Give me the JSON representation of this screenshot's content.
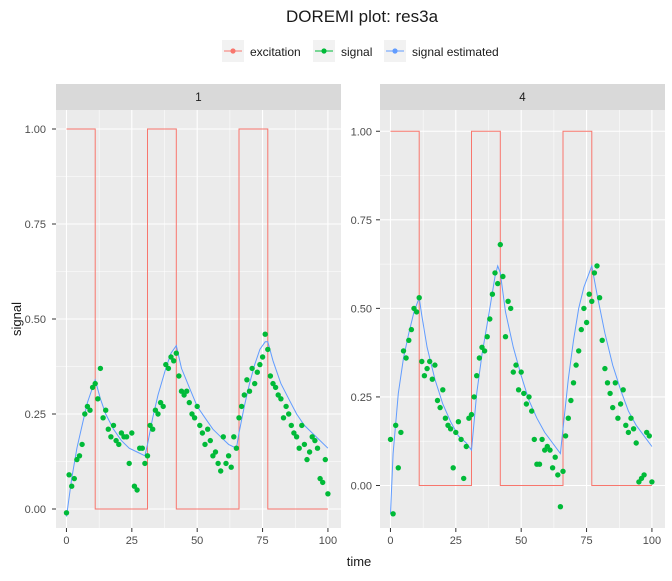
{
  "chart_data": {
    "type": "line",
    "title": "DOREMI plot: res3a",
    "xlabel": "time",
    "ylabel": "signal",
    "legend": {
      "placement": "top",
      "entries": [
        {
          "name": "excitation",
          "color": "#F8766D"
        },
        {
          "name": "signal",
          "color": "#00BA38"
        },
        {
          "name": "signal estimated",
          "color": "#619CFF"
        }
      ]
    },
    "x_ticks": [
      0,
      25,
      50,
      75,
      100
    ],
    "y_ticks": [
      0.0,
      0.25,
      0.5,
      0.75,
      1.0
    ],
    "y_tick_labels": [
      "0.00",
      "0.25",
      "0.50",
      "0.75",
      "1.00"
    ],
    "panels": [
      {
        "label": "1",
        "xlim": [
          -4,
          105
        ],
        "ylim": [
          -0.05,
          1.05
        ],
        "excitation": {
          "x": [
            0,
            11,
            11,
            31,
            31,
            42,
            42,
            66,
            66,
            77,
            77,
            100
          ],
          "y": [
            1,
            1,
            0,
            0,
            1,
            1,
            0,
            0,
            1,
            1,
            0,
            0
          ]
        },
        "signal_estimated": {
          "x": [
            0,
            2,
            4,
            6,
            8,
            10,
            11,
            13,
            15,
            18,
            21,
            24,
            27,
            30,
            31,
            33,
            35,
            38,
            40,
            42,
            44,
            47,
            50,
            53,
            56,
            59,
            62,
            65,
            66,
            68,
            70,
            72,
            74,
            76,
            77,
            79,
            82,
            85,
            88,
            91,
            94,
            97,
            100
          ],
          "y": [
            -0.02,
            0.08,
            0.16,
            0.22,
            0.28,
            0.32,
            0.34,
            0.29,
            0.25,
            0.21,
            0.18,
            0.16,
            0.15,
            0.14,
            0.17,
            0.24,
            0.3,
            0.37,
            0.41,
            0.43,
            0.37,
            0.32,
            0.27,
            0.24,
            0.21,
            0.19,
            0.17,
            0.16,
            0.2,
            0.27,
            0.33,
            0.38,
            0.42,
            0.44,
            0.44,
            0.39,
            0.33,
            0.29,
            0.25,
            0.22,
            0.2,
            0.18,
            0.16
          ]
        },
        "signal": {
          "x": [
            0,
            1,
            2,
            3,
            4,
            5,
            6,
            7,
            8,
            9,
            10,
            11,
            12,
            13,
            14,
            15,
            16,
            17,
            18,
            19,
            20,
            21,
            22,
            23,
            24,
            25,
            26,
            27,
            28,
            29,
            30,
            31,
            32,
            33,
            34,
            35,
            36,
            37,
            38,
            39,
            40,
            41,
            42,
            43,
            44,
            45,
            46,
            47,
            48,
            49,
            50,
            51,
            52,
            53,
            54,
            55,
            56,
            57,
            58,
            59,
            60,
            61,
            62,
            63,
            64,
            65,
            66,
            67,
            68,
            69,
            70,
            71,
            72,
            73,
            74,
            75,
            76,
            77,
            78,
            79,
            80,
            81,
            82,
            83,
            84,
            85,
            86,
            87,
            88,
            89,
            90,
            91,
            92,
            93,
            94,
            95,
            96,
            97,
            98,
            99,
            100
          ],
          "y": [
            -0.01,
            0.09,
            0.06,
            0.08,
            0.13,
            0.14,
            0.17,
            0.25,
            0.27,
            0.26,
            0.32,
            0.33,
            0.29,
            0.37,
            0.24,
            0.26,
            0.21,
            0.19,
            0.22,
            0.18,
            0.17,
            0.2,
            0.19,
            0.19,
            0.12,
            0.2,
            0.06,
            0.05,
            0.16,
            0.16,
            0.12,
            0.14,
            0.22,
            0.21,
            0.26,
            0.25,
            0.28,
            0.27,
            0.38,
            0.37,
            0.4,
            0.39,
            0.41,
            0.35,
            0.31,
            0.3,
            0.31,
            0.28,
            0.25,
            0.24,
            0.27,
            0.22,
            0.2,
            0.17,
            0.21,
            0.18,
            0.14,
            0.15,
            0.12,
            0.1,
            0.19,
            0.12,
            0.14,
            0.11,
            0.19,
            0.16,
            0.24,
            0.27,
            0.3,
            0.34,
            0.31,
            0.37,
            0.33,
            0.36,
            0.38,
            0.4,
            0.46,
            0.42,
            0.35,
            0.33,
            0.32,
            0.3,
            0.29,
            0.24,
            0.27,
            0.25,
            0.22,
            0.2,
            0.19,
            0.16,
            0.22,
            0.17,
            0.13,
            0.15,
            0.19,
            0.18,
            0.16,
            0.08,
            0.07,
            0.13,
            0.04
          ]
        }
      },
      {
        "label": "4",
        "xlim": [
          -4,
          105
        ],
        "ylim": [
          -0.12,
          1.06
        ],
        "excitation": {
          "x": [
            0,
            11,
            11,
            31,
            31,
            42,
            42,
            66,
            66,
            77,
            77,
            100
          ],
          "y": [
            1,
            1,
            0,
            0,
            1,
            1,
            0,
            0,
            1,
            1,
            0,
            0
          ]
        },
        "signal_estimated": {
          "x": [
            0,
            1,
            3,
            5,
            7,
            9,
            11,
            12,
            14,
            17,
            20,
            23,
            26,
            29,
            31,
            33,
            35,
            38,
            40,
            41,
            42,
            44,
            47,
            50,
            53,
            56,
            59,
            62,
            65,
            66,
            68,
            70,
            72,
            74,
            76,
            77,
            79,
            82,
            85,
            88,
            91,
            94,
            97,
            100
          ],
          "y": [
            -0.08,
            0.09,
            0.26,
            0.36,
            0.43,
            0.49,
            0.53,
            0.48,
            0.39,
            0.3,
            0.23,
            0.18,
            0.14,
            0.12,
            0.1,
            0.26,
            0.37,
            0.5,
            0.59,
            0.62,
            0.6,
            0.49,
            0.39,
            0.31,
            0.24,
            0.19,
            0.15,
            0.12,
            0.09,
            0.16,
            0.3,
            0.41,
            0.5,
            0.56,
            0.6,
            0.62,
            0.54,
            0.43,
            0.34,
            0.27,
            0.21,
            0.17,
            0.14,
            0.11
          ]
        },
        "signal": {
          "x": [
            0,
            1,
            2,
            3,
            4,
            5,
            6,
            7,
            8,
            9,
            10,
            11,
            12,
            13,
            14,
            15,
            16,
            17,
            18,
            19,
            20,
            21,
            22,
            23,
            24,
            25,
            26,
            27,
            28,
            29,
            30,
            31,
            32,
            33,
            34,
            35,
            36,
            37,
            38,
            39,
            40,
            41,
            42,
            43,
            44,
            45,
            46,
            47,
            48,
            49,
            50,
            51,
            52,
            53,
            54,
            55,
            56,
            57,
            58,
            59,
            60,
            61,
            62,
            63,
            64,
            65,
            66,
            67,
            68,
            69,
            70,
            71,
            72,
            73,
            74,
            75,
            76,
            77,
            78,
            79,
            80,
            81,
            82,
            83,
            84,
            85,
            86,
            87,
            88,
            89,
            90,
            91,
            92,
            93,
            94,
            95,
            96,
            97,
            98,
            99,
            100
          ],
          "y": [
            0.13,
            -0.08,
            0.17,
            0.05,
            0.15,
            0.38,
            0.36,
            0.41,
            0.44,
            0.5,
            0.49,
            0.53,
            0.35,
            0.31,
            0.33,
            0.35,
            0.3,
            0.34,
            0.24,
            0.22,
            0.27,
            0.19,
            0.17,
            0.16,
            0.05,
            0.15,
            0.18,
            0.13,
            0.02,
            0.11,
            0.19,
            0.2,
            0.25,
            0.31,
            0.36,
            0.39,
            0.38,
            0.42,
            0.47,
            0.54,
            0.6,
            0.57,
            0.68,
            0.59,
            0.42,
            0.52,
            0.5,
            0.32,
            0.34,
            0.27,
            0.32,
            0.26,
            0.23,
            0.25,
            0.21,
            0.13,
            0.06,
            0.06,
            0.13,
            0.1,
            0.11,
            0.1,
            0.05,
            0.08,
            0.03,
            -0.06,
            0.04,
            0.14,
            0.19,
            0.24,
            0.29,
            0.34,
            0.38,
            0.44,
            0.5,
            0.46,
            0.54,
            0.52,
            0.6,
            0.62,
            0.53,
            0.41,
            0.33,
            0.29,
            0.26,
            0.22,
            0.29,
            0.19,
            0.23,
            0.27,
            0.17,
            0.15,
            0.19,
            0.16,
            0.12,
            0.01,
            0.02,
            0.03,
            0.15,
            0.14,
            0.01
          ]
        }
      }
    ]
  }
}
